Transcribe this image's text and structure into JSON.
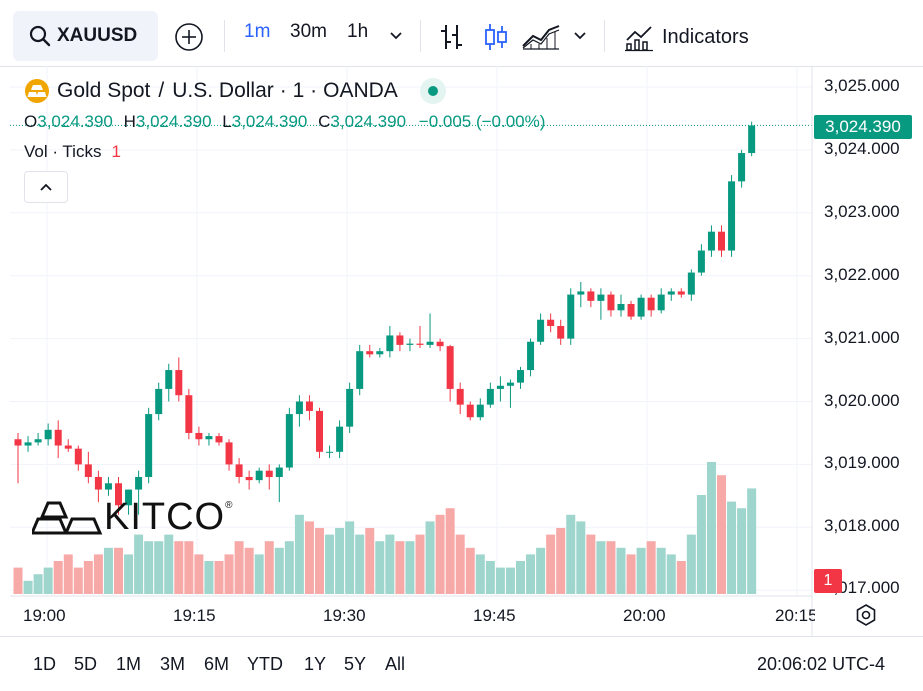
{
  "toolbar": {
    "symbol": "XAUUSD",
    "intervals": [
      "1m",
      "30m",
      "1h"
    ],
    "active_interval": "1m",
    "indicators_label": "Indicators"
  },
  "legend": {
    "title": "Gold Spot",
    "sep": "/",
    "title2": "U.S. Dollar",
    "interval": "· 1 ·",
    "source": "OANDA",
    "o_key": "O",
    "o_val": "3,024.390",
    "h_key": "H",
    "h_val": "3,024.390",
    "l_key": "L",
    "l_val": "3,024.390",
    "c_key": "C",
    "c_val": "3,024.390",
    "change": "−0.005 (−0.00%)",
    "vol_label": "Vol · Ticks",
    "vol_value": "1"
  },
  "price_axis": {
    "labels": [
      "3,025.000",
      "3,024.000",
      "3,023.000",
      "3,022.000",
      "3,021.000",
      "3,020.000",
      "3,019.000",
      "3,018.000",
      "3,017.000"
    ],
    "last_price": "3,024.390",
    "badge": "1"
  },
  "time_axis": {
    "labels": [
      "19:00",
      "19:15",
      "19:30",
      "19:45",
      "20:00",
      "20:15"
    ]
  },
  "watermark": {
    "text": "KITCO",
    "mark": "®"
  },
  "ranges": [
    "1D",
    "5D",
    "1M",
    "3M",
    "6M",
    "YTD",
    "1Y",
    "5Y",
    "All"
  ],
  "clock": "20:06:02 UTC-4",
  "colors": {
    "up": "#089981",
    "down": "#f23645",
    "accent": "#2962ff",
    "gold": "#f0a500"
  },
  "chart_data": {
    "type": "candlestick",
    "symbol": "XAUUSD",
    "interval": "1m",
    "ylim": [
      3016.9,
      3025.1
    ],
    "candles": [
      [
        3019.4,
        3019.5,
        3018.7,
        3019.3
      ],
      [
        3019.3,
        3019.45,
        3019.2,
        3019.35
      ],
      [
        3019.35,
        3019.5,
        3019.3,
        3019.4
      ],
      [
        3019.4,
        3019.65,
        3019.3,
        3019.55
      ],
      [
        3019.55,
        3019.7,
        3019.1,
        3019.3
      ],
      [
        3019.3,
        3019.4,
        3019.2,
        3019.25
      ],
      [
        3019.25,
        3019.3,
        3018.9,
        3019.0
      ],
      [
        3019.0,
        3019.2,
        3018.7,
        3018.8
      ],
      [
        3018.8,
        3018.9,
        3018.4,
        3018.6
      ],
      [
        3018.6,
        3018.8,
        3018.5,
        3018.7
      ],
      [
        3018.7,
        3018.8,
        3018.2,
        3018.35
      ],
      [
        3018.35,
        3018.6,
        3018.2,
        3018.6
      ],
      [
        3018.6,
        3018.9,
        3018.2,
        3018.8
      ],
      [
        3018.8,
        3019.9,
        3018.7,
        3019.8
      ],
      [
        3019.8,
        3020.3,
        3019.7,
        3020.2
      ],
      [
        3020.2,
        3020.6,
        3020.0,
        3020.5
      ],
      [
        3020.5,
        3020.7,
        3020.0,
        3020.1
      ],
      [
        3020.1,
        3020.2,
        3019.4,
        3019.5
      ],
      [
        3019.5,
        3019.6,
        3019.3,
        3019.4
      ],
      [
        3019.4,
        3019.5,
        3019.3,
        3019.45
      ],
      [
        3019.45,
        3019.5,
        3019.3,
        3019.35
      ],
      [
        3019.35,
        3019.4,
        3018.9,
        3019.0
      ],
      [
        3019.0,
        3019.1,
        3018.7,
        3018.8
      ],
      [
        3018.8,
        3018.9,
        3018.6,
        3018.75
      ],
      [
        3018.75,
        3018.95,
        3018.7,
        3018.9
      ],
      [
        3018.9,
        3019.0,
        3018.6,
        3018.8
      ],
      [
        3018.8,
        3019.0,
        3018.4,
        3018.95
      ],
      [
        3018.95,
        3019.9,
        3018.9,
        3019.8
      ],
      [
        3019.8,
        3020.1,
        3019.6,
        3020.0
      ],
      [
        3020.0,
        3020.1,
        3019.7,
        3019.85
      ],
      [
        3019.85,
        3019.9,
        3019.1,
        3019.2
      ],
      [
        3019.2,
        3019.3,
        3019.1,
        3019.2
      ],
      [
        3019.2,
        3019.7,
        3019.1,
        3019.6
      ],
      [
        3019.6,
        3020.3,
        3019.5,
        3020.2
      ],
      [
        3020.2,
        3020.9,
        3020.1,
        3020.8
      ],
      [
        3020.8,
        3020.9,
        3020.7,
        3020.75
      ],
      [
        3020.75,
        3020.85,
        3020.7,
        3020.8
      ],
      [
        3020.8,
        3021.2,
        3020.7,
        3021.05
      ],
      [
        3021.05,
        3021.1,
        3020.8,
        3020.9
      ],
      [
        3020.9,
        3021.0,
        3020.8,
        3020.92
      ],
      [
        3020.92,
        3021.2,
        3020.85,
        3020.9
      ],
      [
        3020.9,
        3021.4,
        3020.85,
        3020.95
      ],
      [
        3020.95,
        3021.0,
        3020.8,
        3020.88
      ],
      [
        3020.88,
        3020.9,
        3020.0,
        3020.2
      ],
      [
        3020.2,
        3020.3,
        3019.8,
        3019.95
      ],
      [
        3019.95,
        3020.0,
        3019.7,
        3019.75
      ],
      [
        3019.75,
        3020.05,
        3019.7,
        3019.95
      ],
      [
        3019.95,
        3020.3,
        3019.9,
        3020.2
      ],
      [
        3020.2,
        3020.4,
        3020.0,
        3020.25
      ],
      [
        3020.25,
        3020.35,
        3019.9,
        3020.3
      ],
      [
        3020.3,
        3020.55,
        3020.2,
        3020.5
      ],
      [
        3020.5,
        3021.0,
        3020.4,
        3020.95
      ],
      [
        3020.95,
        3021.4,
        3020.9,
        3021.3
      ],
      [
        3021.3,
        3021.4,
        3021.1,
        3021.2
      ],
      [
        3021.2,
        3021.3,
        3020.9,
        3021.0
      ],
      [
        3021.0,
        3021.8,
        3020.9,
        3021.7
      ],
      [
        3021.7,
        3021.9,
        3021.5,
        3021.75
      ],
      [
        3021.75,
        3021.8,
        3021.5,
        3021.6
      ],
      [
        3021.6,
        3021.8,
        3021.3,
        3021.7
      ],
      [
        3021.7,
        3021.75,
        3021.35,
        3021.45
      ],
      [
        3021.45,
        3021.7,
        3021.35,
        3021.55
      ],
      [
        3021.55,
        3021.6,
        3021.3,
        3021.35
      ],
      [
        3021.35,
        3021.7,
        3021.3,
        3021.65
      ],
      [
        3021.65,
        3021.7,
        3021.35,
        3021.45
      ],
      [
        3021.45,
        3021.8,
        3021.4,
        3021.7
      ],
      [
        3021.7,
        3021.8,
        3021.6,
        3021.75
      ],
      [
        3021.75,
        3021.8,
        3021.65,
        3021.7
      ],
      [
        3021.7,
        3022.1,
        3021.6,
        3022.05
      ],
      [
        3022.05,
        3022.5,
        3022.0,
        3022.4
      ],
      [
        3022.4,
        3022.8,
        3022.3,
        3022.7
      ],
      [
        3022.7,
        3022.8,
        3022.3,
        3022.4
      ],
      [
        3022.4,
        3023.6,
        3022.3,
        3023.5
      ],
      [
        3023.5,
        3024.0,
        3023.4,
        3023.95
      ],
      [
        3023.95,
        3024.45,
        3023.9,
        3024.39
      ]
    ],
    "volume": [
      4,
      2,
      3,
      4,
      5,
      6,
      4,
      5,
      6,
      7,
      7,
      6,
      9,
      8,
      8,
      9,
      8,
      8,
      6,
      5,
      5,
      6,
      8,
      7,
      6,
      8,
      7,
      8,
      12,
      11,
      10,
      9,
      10,
      11,
      9,
      10,
      8,
      9,
      8,
      8,
      9,
      11,
      12,
      13,
      9,
      7,
      6,
      5,
      4,
      4,
      5,
      6,
      7,
      9,
      10,
      12,
      11,
      9,
      8,
      8,
      7,
      6,
      7,
      8,
      7,
      6,
      5,
      9,
      15,
      20,
      18,
      14,
      13,
      16
    ]
  }
}
